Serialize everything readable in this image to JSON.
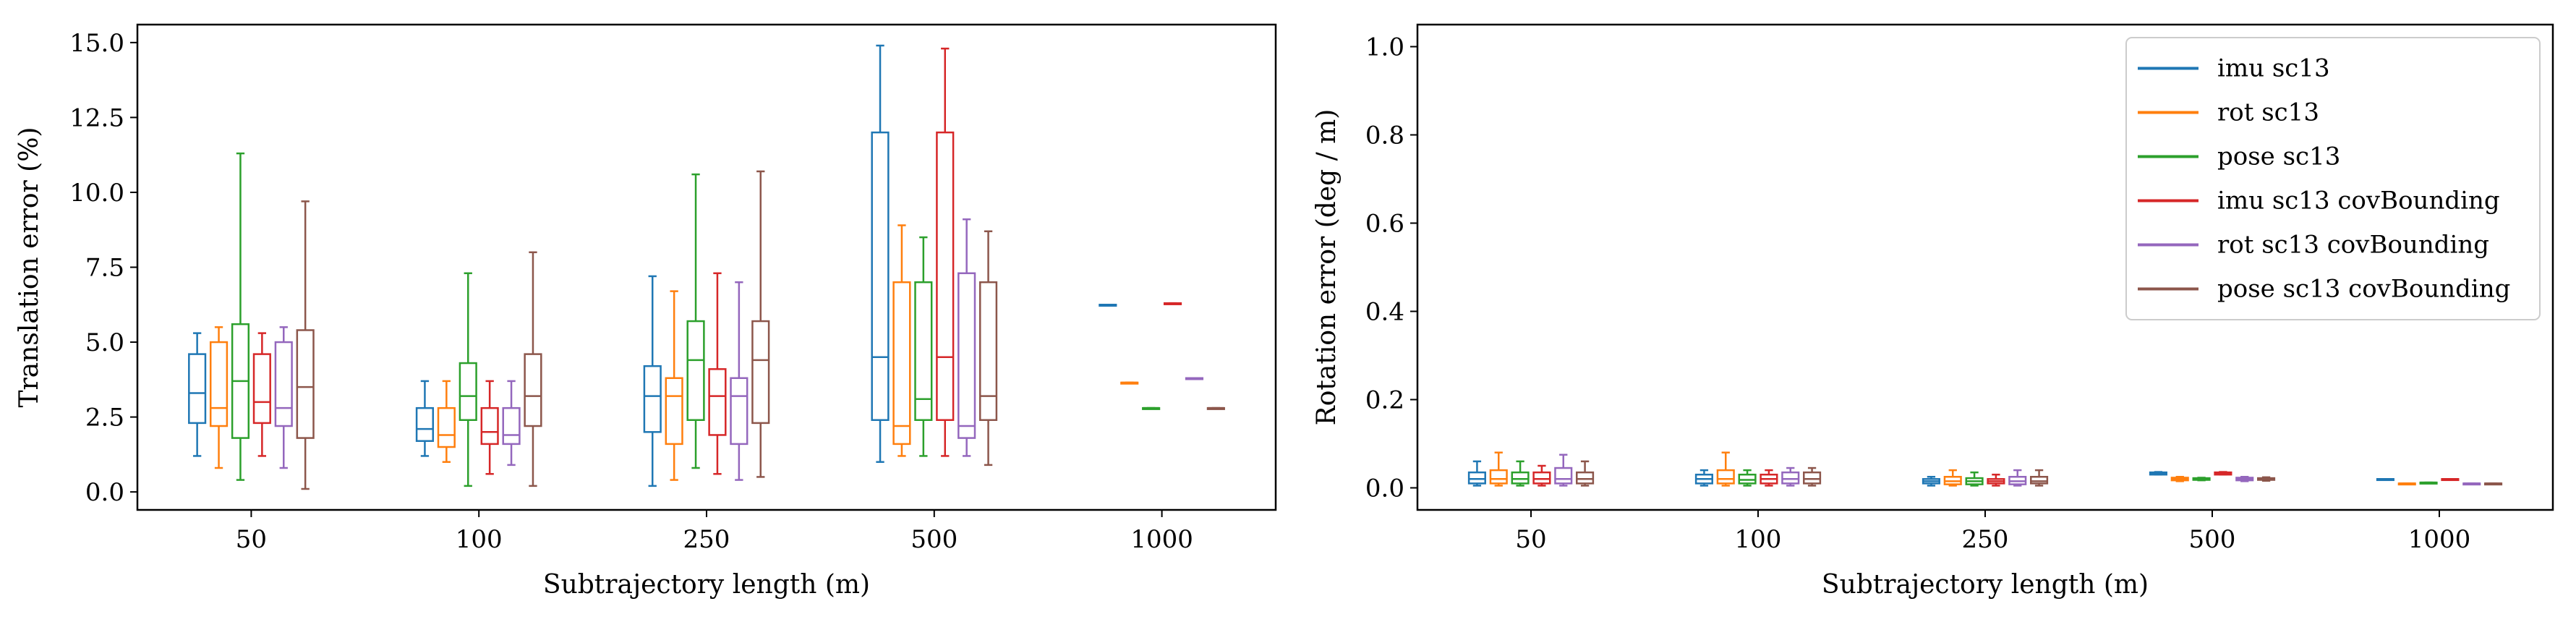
{
  "chart_data": [
    {
      "type": "box",
      "xlabel": "Subtrajectory length (m)",
      "ylabel": "Translation error (%)",
      "ylim": [
        -0.6,
        15.6
      ],
      "yticks": [
        "0.0",
        "2.5",
        "5.0",
        "7.5",
        "10.0",
        "12.5",
        "15.0"
      ],
      "ytick_values": [
        0,
        2.5,
        5,
        7.5,
        10,
        12.5,
        15
      ],
      "categories": [
        "50",
        "100",
        "250",
        "500",
        "1000"
      ],
      "grid": false,
      "series": [
        {
          "name": "imu sc13",
          "color": "#1f77b4",
          "boxes": [
            {
              "min": 1.2,
              "q1": 2.3,
              "median": 3.3,
              "q3": 4.6,
              "max": 5.3
            },
            {
              "min": 1.2,
              "q1": 1.7,
              "median": 2.1,
              "q3": 2.8,
              "max": 3.7
            },
            {
              "min": 0.2,
              "q1": 2.0,
              "median": 3.2,
              "q3": 4.2,
              "max": 7.2
            },
            {
              "min": 1.0,
              "q1": 2.4,
              "median": 4.5,
              "q3": 12.0,
              "max": 14.9
            },
            {
              "min": 6.25,
              "q1": 6.25,
              "median": 6.25,
              "q3": 6.25,
              "max": 6.25
            }
          ]
        },
        {
          "name": "rot sc13",
          "color": "#ff7f0e",
          "boxes": [
            {
              "min": 0.8,
              "q1": 2.2,
              "median": 2.8,
              "q3": 5.0,
              "max": 5.5
            },
            {
              "min": 1.0,
              "q1": 1.5,
              "median": 1.9,
              "q3": 2.8,
              "max": 3.7
            },
            {
              "min": 0.4,
              "q1": 1.6,
              "median": 3.2,
              "q3": 3.8,
              "max": 6.7
            },
            {
              "min": 1.2,
              "q1": 1.6,
              "median": 2.2,
              "q3": 7.0,
              "max": 8.9
            },
            {
              "min": 3.65,
              "q1": 3.65,
              "median": 3.65,
              "q3": 3.65,
              "max": 3.65
            }
          ]
        },
        {
          "name": "pose sc13",
          "color": "#2ca02c",
          "boxes": [
            {
              "min": 0.4,
              "q1": 1.8,
              "median": 3.7,
              "q3": 5.6,
              "max": 11.3
            },
            {
              "min": 0.2,
              "q1": 2.4,
              "median": 3.2,
              "q3": 4.3,
              "max": 7.3
            },
            {
              "min": 0.8,
              "q1": 2.4,
              "median": 4.4,
              "q3": 5.7,
              "max": 10.6
            },
            {
              "min": 1.2,
              "q1": 2.4,
              "median": 3.1,
              "q3": 7.0,
              "max": 8.5
            },
            {
              "min": 2.8,
              "q1": 2.8,
              "median": 2.8,
              "q3": 2.8,
              "max": 2.8
            }
          ]
        },
        {
          "name": "imu sc13 covBounding",
          "color": "#d62728",
          "boxes": [
            {
              "min": 1.2,
              "q1": 2.3,
              "median": 3.0,
              "q3": 4.6,
              "max": 5.3
            },
            {
              "min": 0.6,
              "q1": 1.6,
              "median": 2.0,
              "q3": 2.8,
              "max": 3.7
            },
            {
              "min": 0.6,
              "q1": 1.9,
              "median": 3.2,
              "q3": 4.1,
              "max": 7.3
            },
            {
              "min": 1.2,
              "q1": 2.4,
              "median": 4.5,
              "q3": 12.0,
              "max": 14.8
            },
            {
              "min": 6.3,
              "q1": 6.3,
              "median": 6.3,
              "q3": 6.3,
              "max": 6.3
            }
          ]
        },
        {
          "name": "rot sc13 covBounding",
          "color": "#9467bd",
          "boxes": [
            {
              "min": 0.8,
              "q1": 2.2,
              "median": 2.8,
              "q3": 5.0,
              "max": 5.5
            },
            {
              "min": 0.9,
              "q1": 1.6,
              "median": 1.9,
              "q3": 2.8,
              "max": 3.7
            },
            {
              "min": 0.4,
              "q1": 1.6,
              "median": 3.2,
              "q3": 3.8,
              "max": 7.0
            },
            {
              "min": 1.2,
              "q1": 1.8,
              "median": 2.2,
              "q3": 7.3,
              "max": 9.1
            },
            {
              "min": 3.8,
              "q1": 3.8,
              "median": 3.8,
              "q3": 3.8,
              "max": 3.8
            }
          ]
        },
        {
          "name": "pose sc13 covBounding",
          "color": "#8c564b",
          "boxes": [
            {
              "min": 0.1,
              "q1": 1.8,
              "median": 3.5,
              "q3": 5.4,
              "max": 9.7
            },
            {
              "min": 0.2,
              "q1": 2.2,
              "median": 3.2,
              "q3": 4.6,
              "max": 8.0
            },
            {
              "min": 0.5,
              "q1": 2.3,
              "median": 4.4,
              "q3": 5.7,
              "max": 10.7
            },
            {
              "min": 0.9,
              "q1": 2.4,
              "median": 3.2,
              "q3": 7.0,
              "max": 8.7
            },
            {
              "min": 2.8,
              "q1": 2.8,
              "median": 2.8,
              "q3": 2.8,
              "max": 2.8
            }
          ]
        }
      ]
    },
    {
      "type": "box",
      "xlabel": "Subtrajectory length (m)",
      "ylabel": "Rotation error (deg / m)",
      "ylim": [
        -0.05,
        1.05
      ],
      "yticks": [
        "0.0",
        "0.2",
        "0.4",
        "0.6",
        "0.8",
        "1.0"
      ],
      "ytick_values": [
        0,
        0.2,
        0.4,
        0.6,
        0.8,
        1.0
      ],
      "categories": [
        "50",
        "100",
        "250",
        "500",
        "1000"
      ],
      "grid": false,
      "legend_position": "top-right",
      "series": [
        {
          "name": "imu sc13",
          "color": "#1f77b4",
          "boxes": [
            {
              "min": 0.005,
              "q1": 0.01,
              "median": 0.02,
              "q3": 0.035,
              "max": 0.06
            },
            {
              "min": 0.005,
              "q1": 0.01,
              "median": 0.02,
              "q3": 0.03,
              "max": 0.04
            },
            {
              "min": 0.005,
              "q1": 0.01,
              "median": 0.015,
              "q3": 0.02,
              "max": 0.025
            },
            {
              "min": 0.03,
              "q1": 0.03,
              "median": 0.033,
              "q3": 0.035,
              "max": 0.036
            },
            {
              "min": 0.02,
              "q1": 0.02,
              "median": 0.02,
              "q3": 0.02,
              "max": 0.02
            }
          ]
        },
        {
          "name": "rot sc13",
          "color": "#ff7f0e",
          "boxes": [
            {
              "min": 0.005,
              "q1": 0.01,
              "median": 0.02,
              "q3": 0.04,
              "max": 0.08
            },
            {
              "min": 0.005,
              "q1": 0.01,
              "median": 0.02,
              "q3": 0.04,
              "max": 0.08
            },
            {
              "min": 0.005,
              "q1": 0.008,
              "median": 0.015,
              "q3": 0.025,
              "max": 0.04
            },
            {
              "min": 0.015,
              "q1": 0.017,
              "median": 0.02,
              "q3": 0.023,
              "max": 0.025
            },
            {
              "min": 0.01,
              "q1": 0.01,
              "median": 0.01,
              "q3": 0.01,
              "max": 0.01
            }
          ]
        },
        {
          "name": "pose sc13",
          "color": "#2ca02c",
          "boxes": [
            {
              "min": 0.005,
              "q1": 0.01,
              "median": 0.02,
              "q3": 0.035,
              "max": 0.06
            },
            {
              "min": 0.005,
              "q1": 0.01,
              "median": 0.018,
              "q3": 0.03,
              "max": 0.04
            },
            {
              "min": 0.005,
              "q1": 0.008,
              "median": 0.015,
              "q3": 0.022,
              "max": 0.035
            },
            {
              "min": 0.017,
              "q1": 0.018,
              "median": 0.02,
              "q3": 0.022,
              "max": 0.023
            },
            {
              "min": 0.012,
              "q1": 0.012,
              "median": 0.012,
              "q3": 0.012,
              "max": 0.012
            }
          ]
        },
        {
          "name": "imu sc13 covBounding",
          "color": "#d62728",
          "boxes": [
            {
              "min": 0.005,
              "q1": 0.01,
              "median": 0.02,
              "q3": 0.035,
              "max": 0.05
            },
            {
              "min": 0.005,
              "q1": 0.01,
              "median": 0.02,
              "q3": 0.03,
              "max": 0.04
            },
            {
              "min": 0.005,
              "q1": 0.01,
              "median": 0.015,
              "q3": 0.02,
              "max": 0.03
            },
            {
              "min": 0.03,
              "q1": 0.03,
              "median": 0.033,
              "q3": 0.035,
              "max": 0.036
            },
            {
              "min": 0.02,
              "q1": 0.02,
              "median": 0.02,
              "q3": 0.02,
              "max": 0.02
            }
          ]
        },
        {
          "name": "rot sc13 covBounding",
          "color": "#9467bd",
          "boxes": [
            {
              "min": 0.005,
              "q1": 0.01,
              "median": 0.02,
              "q3": 0.045,
              "max": 0.075
            },
            {
              "min": 0.005,
              "q1": 0.01,
              "median": 0.02,
              "q3": 0.035,
              "max": 0.045
            },
            {
              "min": 0.005,
              "q1": 0.008,
              "median": 0.015,
              "q3": 0.025,
              "max": 0.04
            },
            {
              "min": 0.015,
              "q1": 0.017,
              "median": 0.02,
              "q3": 0.023,
              "max": 0.025
            },
            {
              "min": 0.01,
              "q1": 0.01,
              "median": 0.01,
              "q3": 0.01,
              "max": 0.01
            }
          ]
        },
        {
          "name": "pose sc13 covBounding",
          "color": "#8c564b",
          "boxes": [
            {
              "min": 0.005,
              "q1": 0.01,
              "median": 0.02,
              "q3": 0.035,
              "max": 0.06
            },
            {
              "min": 0.005,
              "q1": 0.01,
              "median": 0.02,
              "q3": 0.035,
              "max": 0.045
            },
            {
              "min": 0.005,
              "q1": 0.01,
              "median": 0.015,
              "q3": 0.025,
              "max": 0.04
            },
            {
              "min": 0.016,
              "q1": 0.018,
              "median": 0.02,
              "q3": 0.022,
              "max": 0.024
            },
            {
              "min": 0.01,
              "q1": 0.01,
              "median": 0.01,
              "q3": 0.01,
              "max": 0.01
            }
          ]
        }
      ]
    }
  ]
}
